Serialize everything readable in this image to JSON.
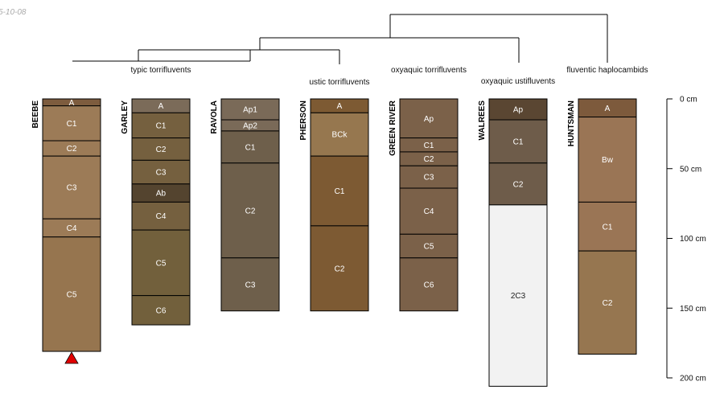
{
  "corner_label": "5-10-08",
  "taxa": [
    {
      "id": "typic",
      "label": "typic torrifluvents"
    },
    {
      "id": "ustic",
      "label": "ustic torrifluvents"
    },
    {
      "id": "oxyaquic_torri",
      "label": "oxyaquic torrifluvents"
    },
    {
      "id": "oxyaquic_usti",
      "label": "oxyaquic ustifluvents"
    },
    {
      "id": "fluventic",
      "label": "fluventic haplocambids"
    }
  ],
  "depth_axis": {
    "unit": "cm",
    "max": 200,
    "ticks": [
      {
        "value": 0,
        "label": "0 cm"
      },
      {
        "value": 50,
        "label": "50 cm"
      },
      {
        "value": 100,
        "label": "100 cm"
      },
      {
        "value": 150,
        "label": "150 cm"
      },
      {
        "value": 200,
        "label": "200 cm"
      }
    ]
  },
  "profiles": [
    {
      "name": "BEEBE",
      "bottom_marker": "red-triangle-icon",
      "horizons": [
        {
          "name": "A",
          "top": 0,
          "bottom": 5,
          "color": "#7d5c3e"
        },
        {
          "name": "C1",
          "top": 5,
          "bottom": 30,
          "color": "#9c7b57"
        },
        {
          "name": "C2",
          "top": 30,
          "bottom": 41,
          "color": "#9c7b57"
        },
        {
          "name": "C3",
          "top": 41,
          "bottom": 86,
          "color": "#9c7b57"
        },
        {
          "name": "C4",
          "top": 86,
          "bottom": 99,
          "color": "#9c7b57"
        },
        {
          "name": "C5",
          "top": 99,
          "bottom": 181,
          "color": "#96754f"
        }
      ]
    },
    {
      "name": "GARLEY",
      "horizons": [
        {
          "name": "A",
          "top": 0,
          "bottom": 10,
          "color": "#7b6b59"
        },
        {
          "name": "C1",
          "top": 10,
          "bottom": 28,
          "color": "#75603f"
        },
        {
          "name": "C2",
          "top": 28,
          "bottom": 44,
          "color": "#75603f"
        },
        {
          "name": "C3",
          "top": 44,
          "bottom": 61,
          "color": "#75603f"
        },
        {
          "name": "Ab",
          "top": 61,
          "bottom": 74,
          "color": "#54442f"
        },
        {
          "name": "C4",
          "top": 74,
          "bottom": 94,
          "color": "#75603f"
        },
        {
          "name": "C5",
          "top": 94,
          "bottom": 141,
          "color": "#72603c"
        },
        {
          "name": "C6",
          "top": 141,
          "bottom": 162,
          "color": "#72603c"
        }
      ]
    },
    {
      "name": "RAVOLA",
      "horizons": [
        {
          "name": "Ap1",
          "top": 0,
          "bottom": 15,
          "color": "#7a6a58"
        },
        {
          "name": "Ap2",
          "top": 15,
          "bottom": 23,
          "color": "#7a6a58"
        },
        {
          "name": "C1",
          "top": 23,
          "bottom": 46,
          "color": "#6e5f4b"
        },
        {
          "name": "C2",
          "top": 46,
          "bottom": 114,
          "color": "#6e5f4b"
        },
        {
          "name": "C3",
          "top": 114,
          "bottom": 152,
          "color": "#6e5f4b"
        }
      ]
    },
    {
      "name": "PHERSON",
      "horizons": [
        {
          "name": "A",
          "top": 0,
          "bottom": 10,
          "color": "#7d5a33"
        },
        {
          "name": "BCk",
          "top": 10,
          "bottom": 41,
          "color": "#96774f"
        },
        {
          "name": "C1",
          "top": 41,
          "bottom": 91,
          "color": "#7d5a33"
        },
        {
          "name": "C2",
          "top": 91,
          "bottom": 152,
          "color": "#7d5a33"
        }
      ]
    },
    {
      "name": "GREEN RIVER",
      "horizons": [
        {
          "name": "Ap",
          "top": 0,
          "bottom": 28,
          "color": "#7b6149"
        },
        {
          "name": "C1",
          "top": 28,
          "bottom": 38,
          "color": "#7b6149"
        },
        {
          "name": "C2",
          "top": 38,
          "bottom": 48,
          "color": "#7b6149"
        },
        {
          "name": "C3",
          "top": 48,
          "bottom": 64,
          "color": "#7b6149"
        },
        {
          "name": "C4",
          "top": 64,
          "bottom": 97,
          "color": "#7b6149"
        },
        {
          "name": "C5",
          "top": 97,
          "bottom": 114,
          "color": "#7b6149"
        },
        {
          "name": "C6",
          "top": 114,
          "bottom": 152,
          "color": "#7b6149"
        }
      ]
    },
    {
      "name": "WALREES",
      "horizons": [
        {
          "name": "Ap",
          "top": 0,
          "bottom": 15,
          "color": "#5a4632"
        },
        {
          "name": "C1",
          "top": 15,
          "bottom": 46,
          "color": "#6e5c4a"
        },
        {
          "name": "C2",
          "top": 46,
          "bottom": 76,
          "color": "#6e5c4a"
        },
        {
          "name": "2C3",
          "top": 76,
          "bottom": 206,
          "color": "#f2f2f2"
        }
      ]
    },
    {
      "name": "HUNTSMAN",
      "horizons": [
        {
          "name": "A",
          "top": 0,
          "bottom": 13,
          "color": "#7d5a3c"
        },
        {
          "name": "Bw",
          "top": 13,
          "bottom": 74,
          "color": "#9a7555"
        },
        {
          "name": "C1",
          "top": 74,
          "bottom": 109,
          "color": "#9a7555"
        },
        {
          "name": "C2",
          "top": 109,
          "bottom": 183,
          "color": "#967650"
        }
      ]
    }
  ]
}
